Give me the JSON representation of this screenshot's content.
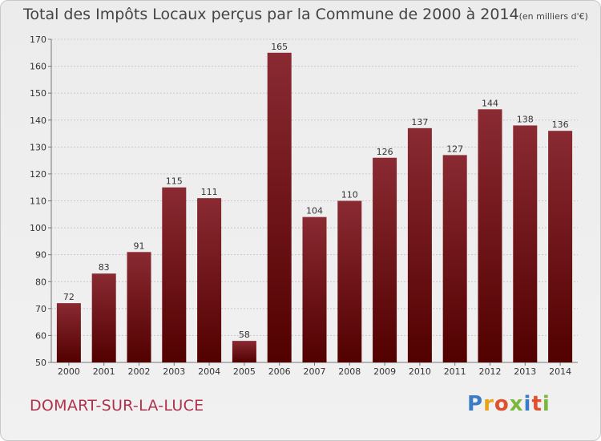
{
  "header": {
    "title": "Total des Impôts Locaux perçus par la Commune de 2000 à 2014",
    "unit": "(en milliers d'€)"
  },
  "footer": {
    "commune": "DOMART-SUR-LA-LUCE",
    "logo_letters": [
      "P",
      "r",
      "o",
      "x",
      "i",
      "t",
      "i"
    ],
    "logo_colors": [
      "#3a7dc6",
      "#e8a21b",
      "#e0502d",
      "#7ab83a",
      "#3a7dc6",
      "#e0502d",
      "#7ab83a"
    ]
  },
  "chart_data": {
    "type": "bar",
    "title": "Total des Impôts Locaux perçus par la Commune de 2000 à 2014",
    "xlabel": "",
    "ylabel": "",
    "categories": [
      "2000",
      "2001",
      "2002",
      "2003",
      "2004",
      "2005",
      "2006",
      "2007",
      "2008",
      "2009",
      "2010",
      "2011",
      "2012",
      "2013",
      "2014"
    ],
    "values": [
      72,
      83,
      91,
      115,
      111,
      58,
      165,
      104,
      110,
      126,
      137,
      127,
      144,
      138,
      136
    ],
    "ylim": [
      50,
      170
    ],
    "yticks": [
      50,
      60,
      70,
      80,
      90,
      100,
      110,
      120,
      130,
      140,
      150,
      160,
      170
    ],
    "grid": true,
    "bar_color": "#7a1a22"
  }
}
